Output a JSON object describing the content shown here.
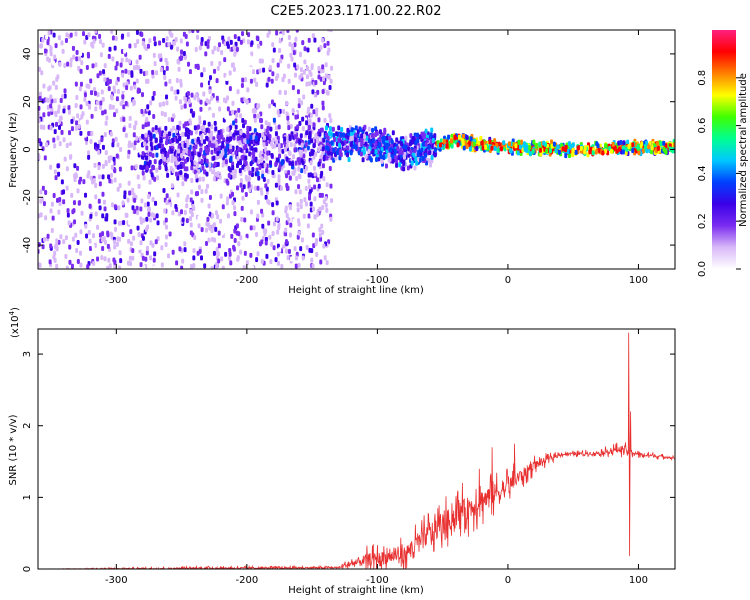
{
  "title": "C2E5.2023.171.00.22.R02",
  "chart_data": [
    {
      "type": "heatmap",
      "name": "spectrogram",
      "xlabel": "Height of straight line (km)",
      "ylabel": "Frequency (Hz)",
      "xlim": [
        -360,
        128
      ],
      "ylim": [
        -50,
        50
      ],
      "x_ticks": [
        -300,
        -200,
        -100,
        0,
        100
      ],
      "y_ticks": [
        -40,
        -20,
        0,
        20,
        40
      ],
      "colorbar": {
        "label": "Normalized spectral amplitude",
        "range": [
          0,
          1
        ],
        "ticks": [
          "0.0",
          "0.2",
          "0.4",
          "0.6",
          "0.8"
        ],
        "colors": [
          "#ffffff",
          "#d8b8f8",
          "#7a2cf0",
          "#3a00e8",
          "#0040ff",
          "#00c8ff",
          "#00ff90",
          "#40ff00",
          "#ffff00",
          "#ff8000",
          "#ff0000",
          "#ff2080"
        ]
      },
      "regions": [
        {
          "x": [
            -360,
            -135
          ],
          "f_spread": 50,
          "amplitude": 0.22,
          "description_level": "diffuse"
        },
        {
          "x": [
            -280,
            -140
          ],
          "f_spread": 14,
          "amplitude": 0.35
        },
        {
          "x": [
            -140,
            -55
          ],
          "f_spread": 8,
          "amplitude": 0.45
        },
        {
          "x": [
            -55,
            128
          ],
          "f_spread": 3,
          "amplitude": 0.8
        }
      ],
      "ridge": [
        {
          "x": -140,
          "f": 2
        },
        {
          "x": -110,
          "f": 3
        },
        {
          "x": -80,
          "f": -1
        },
        {
          "x": -60,
          "f": 1
        },
        {
          "x": -40,
          "f": 4
        },
        {
          "x": -20,
          "f": 2
        },
        {
          "x": 0,
          "f": 1
        },
        {
          "x": 50,
          "f": 0
        },
        {
          "x": 92,
          "f": 1
        },
        {
          "x": 128,
          "f": 1
        }
      ]
    },
    {
      "type": "line",
      "name": "snr",
      "xlabel": "Height of straight line (km)",
      "ylabel": "SNR (10 * v/v)",
      "multiplier_label": "(x10",
      "multiplier_exp": "4",
      "multiplier_close": ")",
      "xlim": [
        -360,
        128
      ],
      "ylim": [
        0,
        3.35
      ],
      "x_ticks": [
        -300,
        -200,
        -100,
        0,
        100
      ],
      "y_ticks": [
        0,
        1,
        2,
        3
      ],
      "line_color": "#e83030",
      "envelope": [
        {
          "x": -360,
          "y": 0.0,
          "noise": 0.0
        },
        {
          "x": -240,
          "y": 0.01,
          "noise": 0.03
        },
        {
          "x": -130,
          "y": 0.02,
          "noise": 0.02
        },
        {
          "x": -110,
          "y": 0.12,
          "noise": 0.2
        },
        {
          "x": -80,
          "y": 0.2,
          "noise": 0.25
        },
        {
          "x": -60,
          "y": 0.5,
          "noise": 0.35
        },
        {
          "x": -40,
          "y": 0.75,
          "noise": 0.4
        },
        {
          "x": -20,
          "y": 0.95,
          "noise": 0.4
        },
        {
          "x": 0,
          "y": 1.15,
          "noise": 0.3
        },
        {
          "x": 20,
          "y": 1.45,
          "noise": 0.15
        },
        {
          "x": 40,
          "y": 1.6,
          "noise": 0.04
        },
        {
          "x": 70,
          "y": 1.62,
          "noise": 0.06
        },
        {
          "x": 88,
          "y": 1.68,
          "noise": 0.12
        },
        {
          "x": 100,
          "y": 1.6,
          "noise": 0.06
        },
        {
          "x": 128,
          "y": 1.55,
          "noise": 0.03
        }
      ],
      "spikes": [
        {
          "x": 92.5,
          "y": 3.3
        },
        {
          "x": 93.2,
          "y": 0.18
        },
        {
          "x": 94,
          "y": 2.2
        },
        {
          "x": -22,
          "y": 1.4
        },
        {
          "x": -35,
          "y": 1.2
        },
        {
          "x": -12,
          "y": 1.7
        },
        {
          "x": 5,
          "y": 1.75
        }
      ]
    }
  ]
}
